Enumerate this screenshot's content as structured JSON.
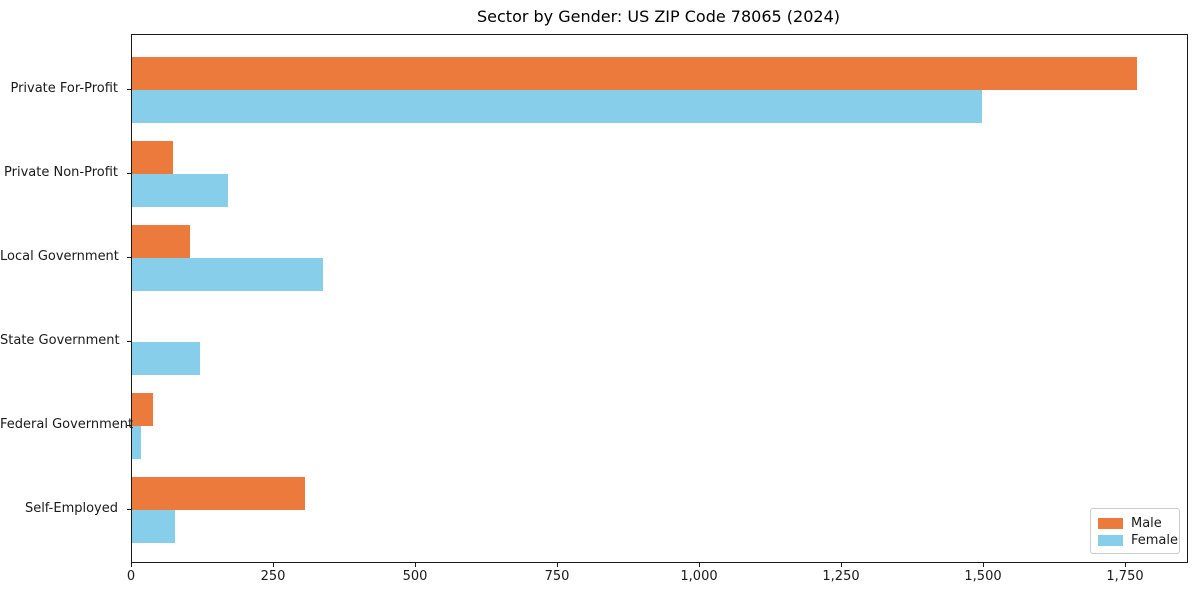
{
  "title": "Sector by Gender: US ZIP Code 78065 (2024)",
  "chart_data": {
    "type": "bar",
    "orientation": "horizontal",
    "title": "Sector by Gender: US ZIP Code 78065 (2024)",
    "xlabel": "",
    "ylabel": "",
    "categories": [
      "Private For-Profit",
      "Private Non-Profit",
      "Local Government",
      "State Government",
      "Federal Government",
      "Self-Employed"
    ],
    "series": [
      {
        "name": "Male",
        "color": "#ec7a3d",
        "values": [
          1770,
          72,
          102,
          0,
          37,
          305
        ]
      },
      {
        "name": "Female",
        "color": "#87ceeb",
        "values": [
          1497,
          169,
          336,
          120,
          16,
          76
        ]
      }
    ],
    "xlim": [
      0,
      1858
    ],
    "x_ticks": [
      {
        "value": 0,
        "label": "0"
      },
      {
        "value": 250,
        "label": "250"
      },
      {
        "value": 500,
        "label": "500"
      },
      {
        "value": 750,
        "label": "750"
      },
      {
        "value": 1000,
        "label": "1,000"
      },
      {
        "value": 1250,
        "label": "1,250"
      },
      {
        "value": 1500,
        "label": "1,500"
      },
      {
        "value": 1750,
        "label": "1,750"
      }
    ],
    "grid": false,
    "legend_position": "lower right",
    "colors": {
      "male": "#ec7a3d",
      "female": "#87ceeb",
      "spine": "#1a1a1a",
      "legend_border": "#cccccc"
    }
  }
}
